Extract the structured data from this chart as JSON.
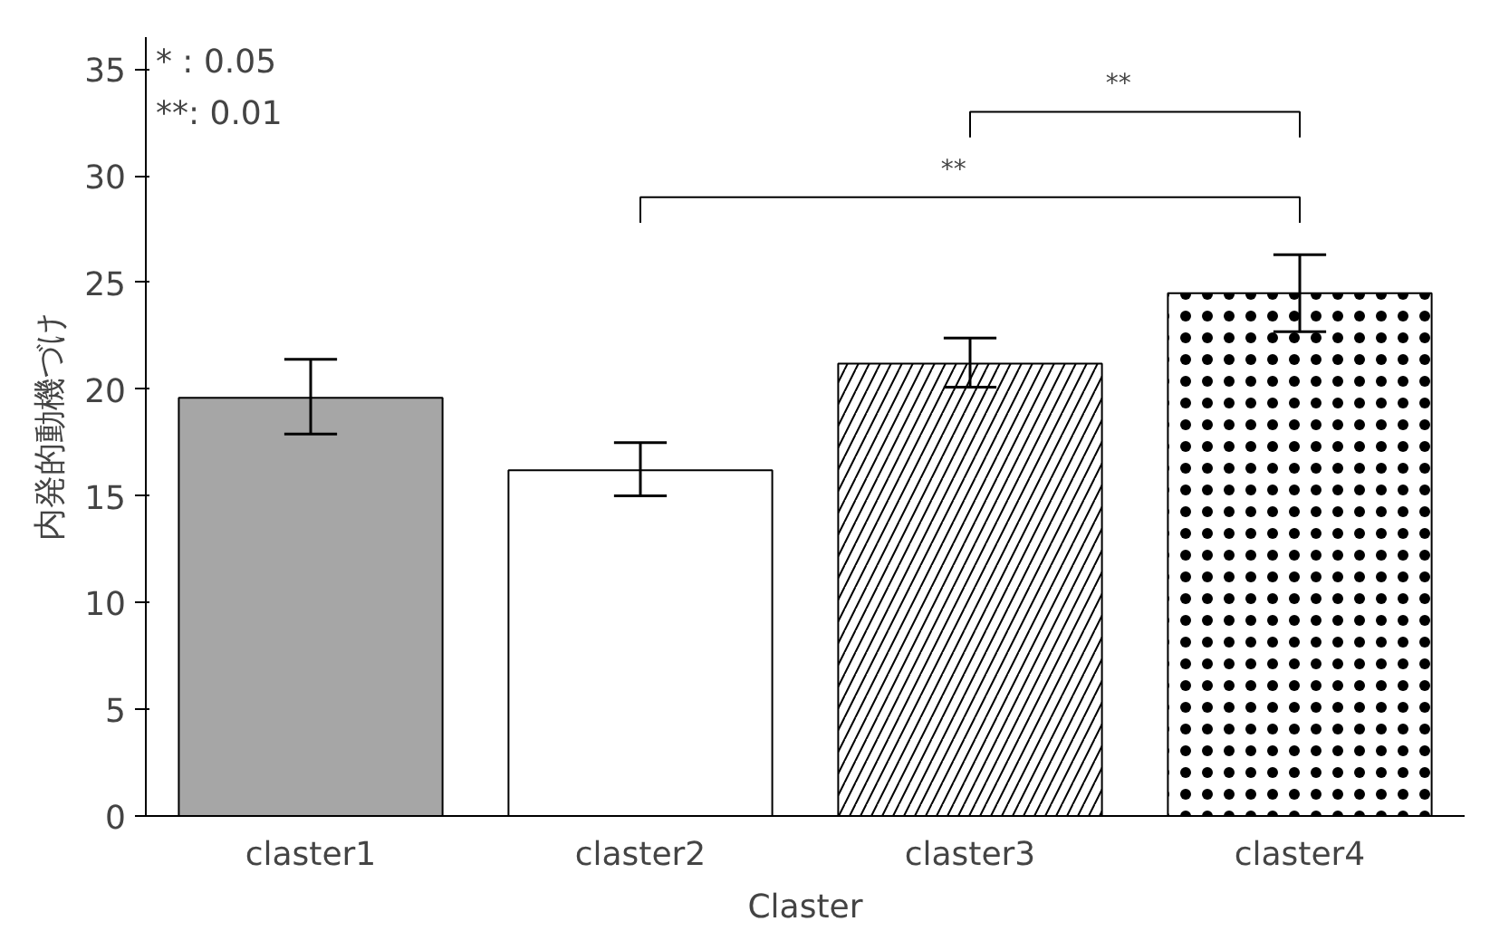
{
  "chart_data": {
    "type": "bar",
    "xlabel": "Claster",
    "ylabel": "内発的動機づけ",
    "categories": [
      "claster1",
      "claster2",
      "claster3",
      "claster4"
    ],
    "values": [
      19.6,
      16.2,
      21.2,
      24.5
    ],
    "errors": [
      [
        17.9,
        21.4
      ],
      [
        15.0,
        17.5
      ],
      [
        20.1,
        22.4
      ],
      [
        22.7,
        26.3
      ]
    ],
    "colors": [
      "#a6a6a6",
      "#ffffff",
      "#ffffff",
      "#ffffff"
    ],
    "ylim": [
      0,
      36.5
    ],
    "yticks": [
      0,
      5,
      10,
      15,
      20,
      25,
      30,
      35
    ],
    "grid": false,
    "annotations": [
      "*    : 0.05",
      "**: 0.01",
      "**",
      "**"
    ]
  }
}
